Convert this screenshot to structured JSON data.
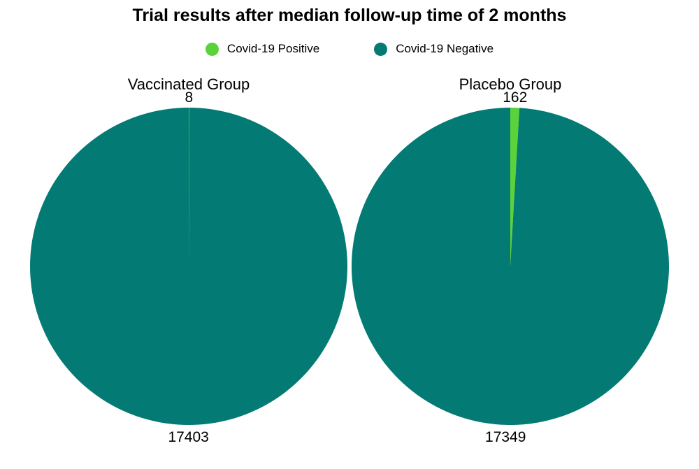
{
  "chart_data": {
    "type": "pie",
    "title": "Trial results after median follow-up time of 2 months",
    "legend": {
      "placement": "top",
      "entries": [
        {
          "name": "Covid-19 Positive",
          "color": "#5ad33a"
        },
        {
          "name": "Covid-19 Negative",
          "color": "#037a73"
        }
      ]
    },
    "pies": [
      {
        "title": "Vaccinated Group",
        "slices": [
          {
            "name": "Covid-19 Positive",
            "value": 8,
            "label": "8"
          },
          {
            "name": "Covid-19 Negative",
            "value": 17403,
            "label": "17403"
          }
        ]
      },
      {
        "title": "Placebo Group",
        "slices": [
          {
            "name": "Covid-19 Positive",
            "value": 162,
            "label": "162"
          },
          {
            "name": "Covid-19 Negative",
            "value": 17349,
            "label": "17349"
          }
        ]
      }
    ]
  }
}
